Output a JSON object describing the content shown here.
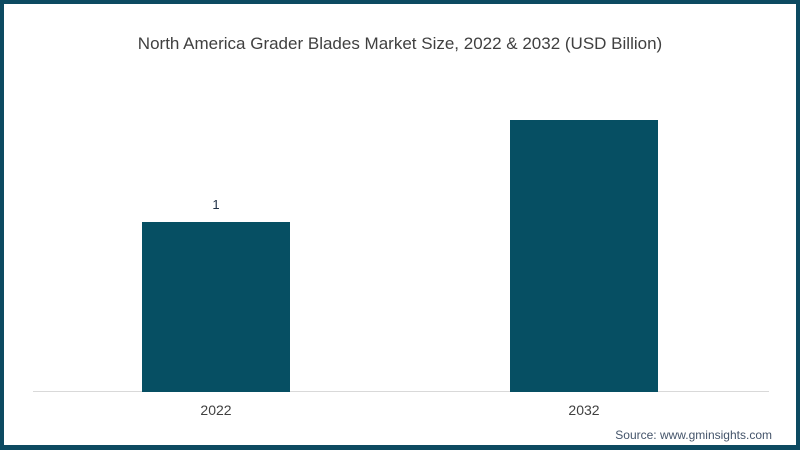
{
  "title": "North America Grader Blades Market Size, 2022 & 2032 (USD Billion)",
  "source": "Source: www.gminsights.com",
  "colors": {
    "bar": "#064f63",
    "frame_border": "#0d4a61",
    "axis_line": "#d9d9d9",
    "title_text": "#404040",
    "tick_text": "#404040",
    "value_label_text": "#1f2f45",
    "source_text": "#44546a"
  },
  "chart_data": {
    "type": "bar",
    "title": "North America Grader Blades Market Size, 2022 & 2032 (USD Billion)",
    "categories": [
      "2022",
      "2032"
    ],
    "values": [
      1,
      1.6
    ],
    "value_labels": [
      "1",
      ""
    ],
    "xlabel": "",
    "ylabel": "",
    "ylim": [
      0,
      1.75
    ],
    "grid": false,
    "legend": false,
    "bar_color": "#064f63"
  }
}
